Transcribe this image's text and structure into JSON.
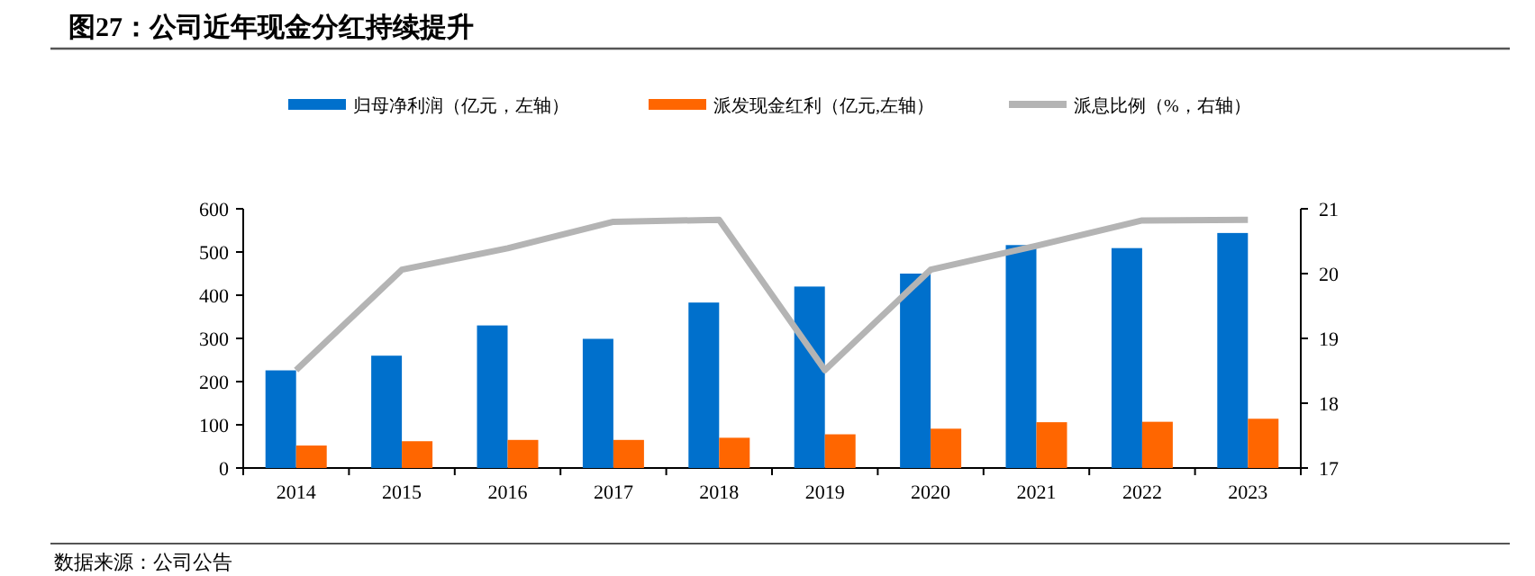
{
  "chart_data": {
    "type": "bar",
    "title": "图27：公司近年现金分红持续提升",
    "categories": [
      "2014",
      "2015",
      "2016",
      "2017",
      "2018",
      "2019",
      "2020",
      "2021",
      "2022",
      "2023"
    ],
    "series": [
      {
        "name": "归母净利润（亿元，左轴）",
        "color": "#0070cc",
        "values": [
          226,
          260,
          330,
          299,
          383,
          420,
          450,
          516,
          509,
          544
        ]
      },
      {
        "name": "派发现金红利（亿元,左轴）",
        "color": "#ff6600",
        "values": [
          52,
          62,
          65,
          65,
          70,
          78,
          91,
          106,
          107,
          114
        ]
      },
      {
        "name": "派息比例（%，右轴）",
        "type": "line",
        "axis": "y2",
        "color": "#b4b4b4",
        "values": [
          18.51,
          20.06,
          20.39,
          20.8,
          20.83,
          18.51,
          20.06,
          20.43,
          20.82,
          20.83
        ]
      }
    ],
    "ylim": [
      0,
      600
    ],
    "yticks": [
      0,
      100,
      200,
      300,
      400,
      500,
      600
    ],
    "y2lim": [
      17,
      21
    ],
    "y2ticks": [
      17,
      18,
      19,
      20,
      21
    ],
    "grid": false,
    "legend": "top",
    "marker": "none",
    "line_style": "solid",
    "annotations": [
      "数据来源：公司公告"
    ]
  }
}
